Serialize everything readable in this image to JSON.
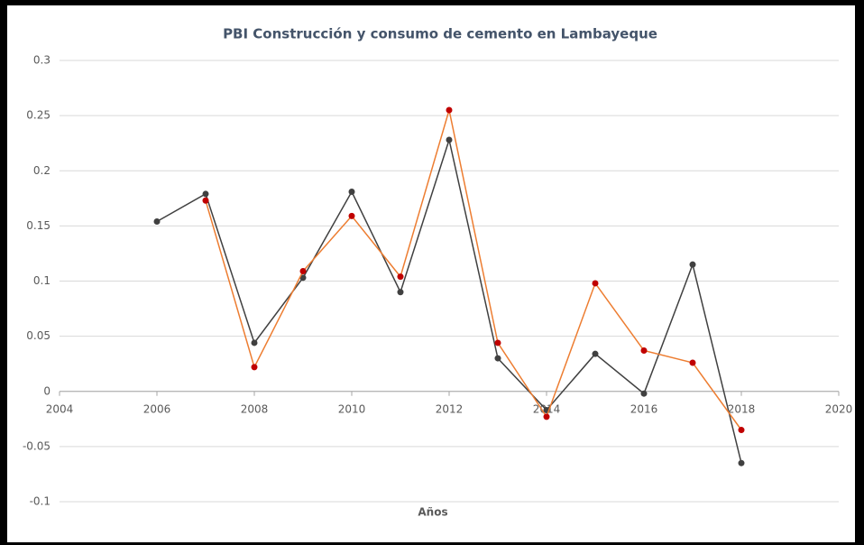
{
  "chart_data": {
    "type": "line",
    "title": "PBI Construcción y consumo de cemento en Lambayeque",
    "x_label": "Años",
    "xlim": [
      2004,
      2020
    ],
    "xticks": [
      2004,
      2006,
      2008,
      2010,
      2012,
      2014,
      2016,
      2018,
      2020
    ],
    "ylim": [
      -0.1,
      0.3
    ],
    "yticks": [
      -0.1,
      -0.05,
      0,
      0.05,
      0.1,
      0.15,
      0.2,
      0.25,
      0.3
    ],
    "grid": true,
    "series": [
      {
        "color": "#404040",
        "marker_color": "#404040",
        "x": [
          2006,
          2007,
          2008,
          2009,
          2010,
          2011,
          2012,
          2013,
          2014,
          2015,
          2016,
          2017,
          2018
        ],
        "values": [
          0.154,
          0.179,
          0.044,
          0.103,
          0.181,
          0.09,
          0.228,
          0.03,
          -0.017,
          0.034,
          -0.002,
          0.115,
          -0.065
        ]
      },
      {
        "color": "#ed7d31",
        "marker_color": "#c00000",
        "x": [
          2007,
          2008,
          2009,
          2010,
          2011,
          2012,
          2013,
          2014,
          2015,
          2016,
          2017,
          2018
        ],
        "values": [
          0.173,
          0.022,
          0.109,
          0.159,
          0.104,
          0.255,
          0.044,
          -0.023,
          0.098,
          0.037,
          0.026,
          -0.035
        ]
      }
    ]
  }
}
